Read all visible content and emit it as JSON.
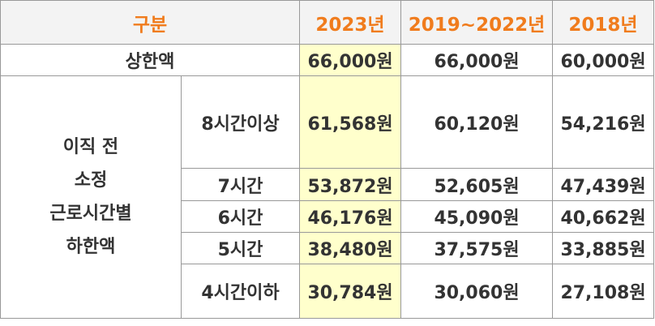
{
  "colors": {
    "header_text": "#f07c1d",
    "header_bg": "#f3f3f3",
    "highlight_col_bg": "#ffffcc",
    "border": "#999999"
  },
  "header": {
    "category": "구분",
    "col_2023": "2023년",
    "col_2019_2022": "2019~2022년",
    "col_2018": "2018년"
  },
  "upper_limit": {
    "label": "상한액",
    "v2023": "66,000원",
    "v2019_2022": "66,000원",
    "v2018": "60,000원"
  },
  "lower_limit": {
    "label_lines": [
      "이직 전",
      "소정",
      "근로시간별",
      "하한액"
    ],
    "rows": [
      {
        "hours": "8시간이상",
        "v2023": "61,568원",
        "v2019_2022": "60,120원",
        "v2018": "54,216원"
      },
      {
        "hours": "7시간",
        "v2023": "53,872원",
        "v2019_2022": "52,605원",
        "v2018": "47,439원"
      },
      {
        "hours": "6시간",
        "v2023": "46,176원",
        "v2019_2022": "45,090원",
        "v2018": "40,662원"
      },
      {
        "hours": "5시간",
        "v2023": "38,480원",
        "v2019_2022": "37,575원",
        "v2018": "33,885원"
      },
      {
        "hours": "4시간이하",
        "v2023": "30,784원",
        "v2019_2022": "30,060원",
        "v2018": "27,108원"
      }
    ]
  }
}
